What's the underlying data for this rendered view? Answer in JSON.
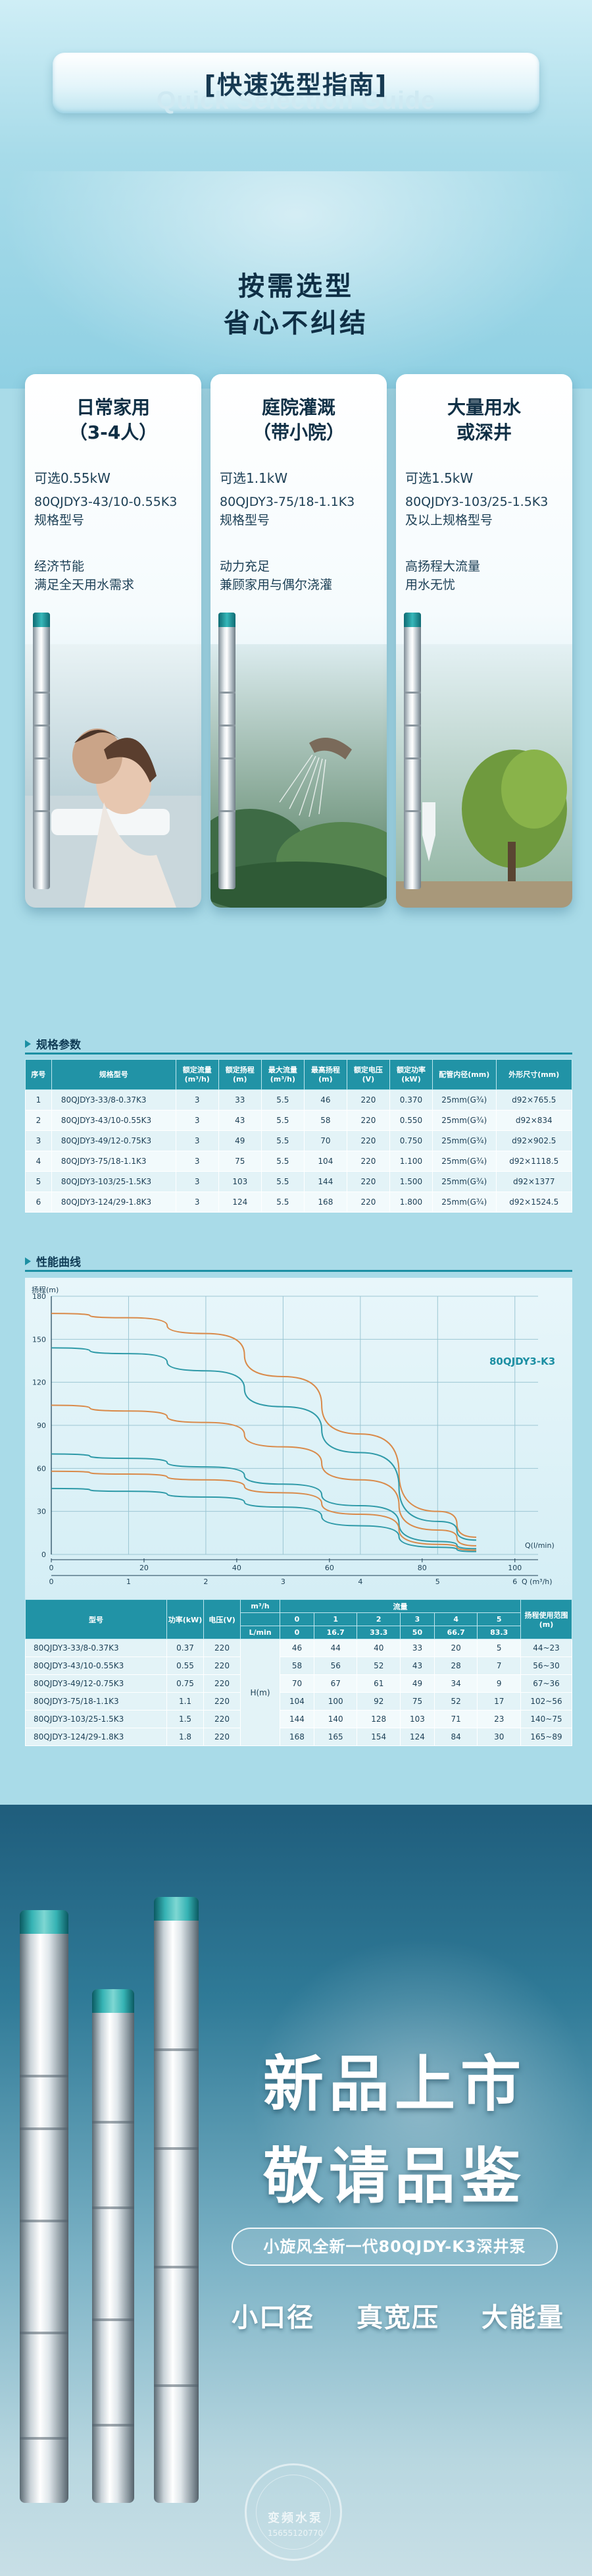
{
  "header": {
    "title": "[快速选型指南]",
    "watermark": "Quick Selection Guide",
    "slogan_line1": "按需选型",
    "slogan_line2": "省心不纠结"
  },
  "cards": [
    {
      "title_line1": "日常家用",
      "title_line2": "（3-4人）",
      "power": "可选0.55kW",
      "model": "80QJDY3-43/10-0.55K3",
      "model_suffix": "规格型号",
      "desc1": "经济节能",
      "desc2": "满足全天用水需求"
    },
    {
      "title_line1": "庭院灌溉",
      "title_line2": "（带小院）",
      "power": "可选1.1kW",
      "model": "80QJDY3-75/18-1.1K3",
      "model_suffix": "规格型号",
      "desc1": "动力充足",
      "desc2": "兼顾家用与偶尔浇灌"
    },
    {
      "title_line1": "大量用水",
      "title_line2": "或深井",
      "power": "可选1.5kW",
      "model": "80QJDY3-103/25-1.5K3",
      "model_suffix": "及以上规格型号",
      "desc1": "高扬程大流量",
      "desc2": "用水无忧"
    }
  ],
  "spec": {
    "section_title": "规格参数",
    "headers": [
      "序号",
      "规格型号",
      "额定流量(m³/h)",
      "额定扬程(m)",
      "最大流量(m³/h)",
      "最高扬程(m)",
      "额定电压(V)",
      "额定功率(kW)",
      "配管内径(mm)",
      "外形尺寸(mm)"
    ],
    "rows": [
      [
        "1",
        "80QJDY3-33/8-0.37K3",
        "3",
        "33",
        "5.5",
        "46",
        "220",
        "0.370",
        "25mm(G¾)",
        "d92×765.5"
      ],
      [
        "2",
        "80QJDY3-43/10-0.55K3",
        "3",
        "43",
        "5.5",
        "58",
        "220",
        "0.550",
        "25mm(G¾)",
        "d92×834"
      ],
      [
        "3",
        "80QJDY3-49/12-0.75K3",
        "3",
        "49",
        "5.5",
        "70",
        "220",
        "0.750",
        "25mm(G¾)",
        "d92×902.5"
      ],
      [
        "4",
        "80QJDY3-75/18-1.1K3",
        "3",
        "75",
        "5.5",
        "104",
        "220",
        "1.100",
        "25mm(G¾)",
        "d92×1118.5"
      ],
      [
        "5",
        "80QJDY3-103/25-1.5K3",
        "3",
        "103",
        "5.5",
        "144",
        "220",
        "1.500",
        "25mm(G¾)",
        "d92×1377"
      ],
      [
        "6",
        "80QJDY3-124/29-1.8K3",
        "3",
        "124",
        "5.5",
        "168",
        "220",
        "1.800",
        "25mm(G¾)",
        "d92×1524.5"
      ]
    ]
  },
  "performance": {
    "section_title": "性能曲线",
    "series_label": "80QJDY3-K3",
    "ylabel": "扬程(m)",
    "xlabel_top": "Q(l/min)",
    "xlabel_bottom": "Q (m³/h)",
    "top_axis_ticks": [
      "0",
      "20",
      "40",
      "60",
      "80",
      "100"
    ],
    "x_ticks": [
      "0",
      "1",
      "2",
      "3",
      "4",
      "5",
      "6"
    ],
    "y_ticks": [
      "0",
      "30",
      "60",
      "90",
      "120",
      "150",
      "180"
    ]
  },
  "chart_data": {
    "type": "line",
    "xlabel": "Q (m³/h)",
    "ylabel": "扬程(m)",
    "xlim": [
      0,
      6.3
    ],
    "ylim": [
      0,
      180
    ],
    "x": [
      0,
      1,
      2,
      3,
      4,
      5,
      5.5
    ],
    "series": [
      {
        "values": [
          168,
          165,
          154,
          124,
          84,
          30,
          12
        ],
        "color": "#d98a4a"
      },
      {
        "values": [
          144,
          140,
          128,
          103,
          71,
          23,
          10
        ],
        "color": "#2f9aa8"
      },
      {
        "values": [
          104,
          100,
          92,
          75,
          52,
          17,
          6
        ],
        "color": "#d98a4a"
      },
      {
        "values": [
          70,
          67,
          61,
          49,
          34,
          9,
          4
        ],
        "color": "#2f9aa8"
      },
      {
        "values": [
          58,
          56,
          52,
          43,
          28,
          7,
          3
        ],
        "color": "#d98a4a"
      },
      {
        "values": [
          46,
          44,
          40,
          33,
          20,
          5,
          2
        ],
        "color": "#2f9aa8"
      }
    ]
  },
  "flow": {
    "headers": {
      "model": "型号",
      "power": "功率(kW)",
      "voltage": "电压(V)",
      "flow": "流量",
      "range": "扬程使用范围(m)",
      "unit_m3h": "m³/h",
      "unit_lmin": "L/min",
      "head": "H(m)"
    },
    "m3h": [
      "0",
      "1",
      "2",
      "3",
      "4",
      "5"
    ],
    "lmin": [
      "0",
      "16.7",
      "33.3",
      "50",
      "66.7",
      "83.3"
    ],
    "rows": [
      {
        "model": "80QJDY3-33/8-0.37K3",
        "power": "0.37",
        "voltage": "220",
        "heads": [
          "46",
          "44",
          "40",
          "33",
          "20",
          "5"
        ],
        "range": "44~23"
      },
      {
        "model": "80QJDY3-43/10-0.55K3",
        "power": "0.55",
        "voltage": "220",
        "heads": [
          "58",
          "56",
          "52",
          "43",
          "28",
          "7"
        ],
        "range": "56~30"
      },
      {
        "model": "80QJDY3-49/12-0.75K3",
        "power": "0.75",
        "voltage": "220",
        "heads": [
          "70",
          "67",
          "61",
          "49",
          "34",
          "9"
        ],
        "range": "67~36"
      },
      {
        "model": "80QJDY3-75/18-1.1K3",
        "power": "1.1",
        "voltage": "220",
        "heads": [
          "104",
          "100",
          "92",
          "75",
          "52",
          "17"
        ],
        "range": "102~56"
      },
      {
        "model": "80QJDY3-103/25-1.5K3",
        "power": "1.5",
        "voltage": "220",
        "heads": [
          "144",
          "140",
          "128",
          "103",
          "71",
          "23"
        ],
        "range": "140~75"
      },
      {
        "model": "80QJDY3-124/29-1.8K3",
        "power": "1.8",
        "voltage": "220",
        "heads": [
          "168",
          "165",
          "154",
          "124",
          "84",
          "30"
        ],
        "range": "165~89"
      }
    ]
  },
  "poster": {
    "line1": "新品上市",
    "line2": "敬请品鉴",
    "pill": "小旋风全新一代80QJDY-K3深井泵",
    "features": [
      "小口径",
      "真宽压",
      "大能量"
    ],
    "seal_name": "变频水泵",
    "seal_phone": "15655120770"
  }
}
